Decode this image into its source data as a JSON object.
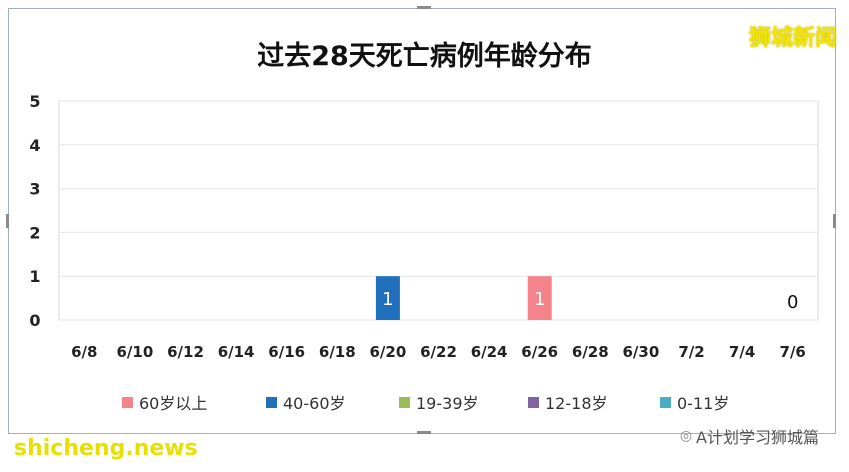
{
  "title": "过去28天死亡病例年龄分布",
  "brand": "狮城新闻",
  "footer": {
    "watermark": "shicheng.news",
    "account": "A计划学习狮城篇"
  },
  "colors": {
    "60+": "#f4838b",
    "40-60": "#1f6fbd",
    "19-39": "#9bbb59",
    "12-18": "#8064a2",
    "0-11": "#4bacc6"
  },
  "chart_data": {
    "type": "bar",
    "categories": [
      "6/8",
      "6/10",
      "6/12",
      "6/14",
      "6/16",
      "6/18",
      "6/20",
      "6/22",
      "6/24",
      "6/26",
      "6/28",
      "6/30",
      "7/2",
      "7/4",
      "7/6"
    ],
    "series": [
      {
        "name": "60岁以上",
        "values": [
          0,
          0,
          0,
          0,
          0,
          0,
          0,
          0,
          0,
          1,
          0,
          0,
          0,
          0,
          0
        ]
      },
      {
        "name": "40-60岁",
        "values": [
          0,
          0,
          0,
          0,
          0,
          0,
          1,
          0,
          0,
          0,
          0,
          0,
          0,
          0,
          0
        ]
      },
      {
        "name": "19-39岁",
        "values": [
          0,
          0,
          0,
          0,
          0,
          0,
          0,
          0,
          0,
          0,
          0,
          0,
          0,
          0,
          0
        ]
      },
      {
        "name": "12-18岁",
        "values": [
          0,
          0,
          0,
          0,
          0,
          0,
          0,
          0,
          0,
          0,
          0,
          0,
          0,
          0,
          0
        ]
      },
      {
        "name": "0-11岁",
        "values": [
          0,
          0,
          0,
          0,
          0,
          0,
          0,
          0,
          0,
          0,
          0,
          0,
          0,
          0,
          0
        ]
      }
    ],
    "stacked": true,
    "ylim": [
      0,
      5
    ],
    "yticks": [
      "0",
      "1",
      "2",
      "3",
      "4",
      "5"
    ],
    "data_labels": [
      {
        "category": "6/20",
        "text": "1"
      },
      {
        "category": "6/26",
        "text": "1"
      },
      {
        "category": "7/6",
        "text": "0"
      }
    ],
    "grid": true,
    "legend_position": "bottom"
  }
}
